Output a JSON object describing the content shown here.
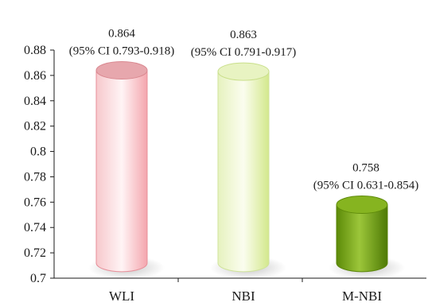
{
  "chart_data": {
    "type": "bar",
    "style": "3d-cylinder",
    "categories": [
      "WLI",
      "NBI",
      "M-NBI"
    ],
    "values": [
      0.864,
      0.863,
      0.758
    ],
    "data_labels": [
      {
        "value": "0.864",
        "ci": "(95% CI 0.793-0.918)"
      },
      {
        "value": "0.863",
        "ci": "(95% CI 0.791-0.917)"
      },
      {
        "value": "0.758",
        "ci": "(95% CI 0.631-0.854)"
      }
    ],
    "yticks": [
      "0.7",
      "0.72",
      "0.74",
      "0.76",
      "0.78",
      "0.8",
      "0.82",
      "0.84",
      "0.86",
      "0.88"
    ],
    "ylim": [
      0.7,
      0.88
    ],
    "grid": false,
    "legend": "none",
    "colors": {
      "WLI": "#f2a0a8",
      "NBI": "#d8eba0",
      "M-NBI": "#6e9a10"
    }
  }
}
